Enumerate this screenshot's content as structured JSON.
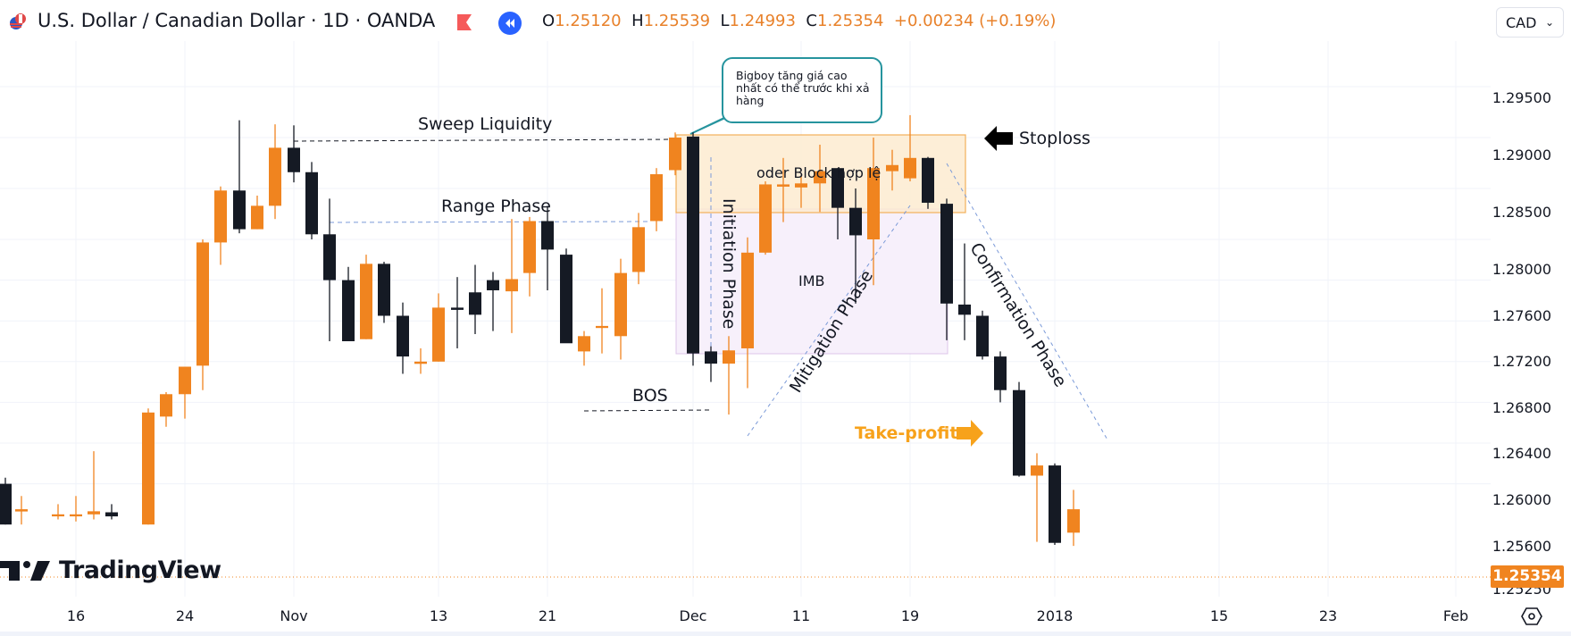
{
  "header": {
    "symbol_title": "U.S. Dollar / Canadian Dollar · 1D · OANDA",
    "ohlc": {
      "o_label": "O",
      "o_value": "1.25120",
      "h_label": "H",
      "h_value": "1.25539",
      "l_label": "L",
      "l_value": "1.24993",
      "c_label": "C",
      "c_value": "1.25354",
      "change": "+0.00234 (+0.19%)"
    },
    "currency_button": "CAD",
    "icons": [
      "usd-cad-flag-icon",
      "red-flag-icon",
      "rewind-icon",
      "chevron-down-icon"
    ]
  },
  "price_axis": {
    "labels": [
      "1.29500",
      "1.29000",
      "1.28500",
      "1.28000",
      "1.27600",
      "1.27200",
      "1.26800",
      "1.26400",
      "1.26000",
      "1.25600",
      "1.25250"
    ],
    "current_price": "1.25354"
  },
  "time_axis": {
    "labels": [
      "16",
      "24",
      "Nov",
      "13",
      "21",
      "Dec",
      "11",
      "19",
      "2018",
      "15",
      "23",
      "Feb"
    ]
  },
  "annotations": {
    "sweep_liquidity": "Sweep Liquidity",
    "range_phase": "Range Phase",
    "bos": "BOS",
    "initiation_phase": "Initiation Phase",
    "order_block": "oder Block hợp lệ",
    "imb": "IMB",
    "mitigation_phase": "Mitigation Phase",
    "confirmation_phase": "Confirmation Phase",
    "stoploss": "Stoploss",
    "take_profit": "Take-profit",
    "callout": "Bigboy tăng giá cao nhất có thể trước khi xả hàng"
  },
  "colors": {
    "up": "#f0841f",
    "down": "#151a24",
    "order_block_fill": "#fdebd0",
    "order_block_border": "#f2b05a",
    "imb_fill": "#f7f0fb",
    "imb_border": "#dcc4e8",
    "callout_border": "#26949e",
    "take_profit": "#f7a21b",
    "dash_blue": "#7b9ad8",
    "accent_blue": "#2962ff"
  },
  "branding": {
    "logo_text": "TradingView"
  },
  "chart_data": {
    "type": "candlestick",
    "title": "U.S. Dollar / Canadian Dollar · 1D · OANDA",
    "xlabel": "",
    "ylabel": "CAD",
    "ylim": [
      1.2525,
      1.2985
    ],
    "x_ticks": [
      "16",
      "24",
      "Nov",
      "13",
      "21",
      "Dec",
      "11",
      "19",
      "2018",
      "15",
      "23",
      "Feb"
    ],
    "y_ticks": [
      1.295,
      1.29,
      1.285,
      1.28,
      1.276,
      1.272,
      1.268,
      1.264,
      1.26,
      1.256
    ],
    "last": {
      "open": 1.2512,
      "high": 1.25539,
      "low": 1.24993,
      "close": 1.25354,
      "change": 0.00234,
      "change_pct": 0.19
    },
    "candles": [
      {
        "x": 6,
        "o": 1.256,
        "h": 1.2566,
        "l": 1.252,
        "c": 1.252
      },
      {
        "x": 24,
        "o": 1.2535,
        "h": 1.2548,
        "l": 1.252,
        "c": 1.2535
      },
      {
        "x": 65,
        "o": 1.2528,
        "h": 1.254,
        "l": 1.2525,
        "c": 1.253
      },
      {
        "x": 85,
        "o": 1.2528,
        "h": 1.2548,
        "l": 1.2523,
        "c": 1.253
      },
      {
        "x": 105,
        "o": 1.253,
        "h": 1.2592,
        "l": 1.2525,
        "c": 1.2533
      },
      {
        "x": 125,
        "o": 1.2532,
        "h": 1.254,
        "l": 1.2525,
        "c": 1.2528
      },
      {
        "x": 166,
        "o": 1.252,
        "h": 1.2634,
        "l": 1.252,
        "c": 1.263
      },
      {
        "x": 186,
        "o": 1.2626,
        "h": 1.265,
        "l": 1.2616,
        "c": 1.2648
      },
      {
        "x": 207,
        "o": 1.2648,
        "h": 1.2672,
        "l": 1.2624,
        "c": 1.2675
      },
      {
        "x": 227,
        "o": 1.2676,
        "h": 1.28,
        "l": 1.2652,
        "c": 1.2797
      },
      {
        "x": 247,
        "o": 1.2797,
        "h": 1.2852,
        "l": 1.2775,
        "c": 1.2848
      },
      {
        "x": 268,
        "o": 1.2848,
        "h": 1.2917,
        "l": 1.2806,
        "c": 1.281
      },
      {
        "x": 288,
        "o": 1.281,
        "h": 1.2843,
        "l": 1.281,
        "c": 1.2833
      },
      {
        "x": 308,
        "o": 1.2833,
        "h": 1.2913,
        "l": 1.282,
        "c": 1.289
      },
      {
        "x": 329,
        "o": 1.289,
        "h": 1.2912,
        "l": 1.2856,
        "c": 1.2866
      },
      {
        "x": 349,
        "o": 1.2866,
        "h": 1.2876,
        "l": 1.28,
        "c": 1.2805
      },
      {
        "x": 369,
        "o": 1.2805,
        "h": 1.284,
        "l": 1.27,
        "c": 1.276
      },
      {
        "x": 390,
        "o": 1.276,
        "h": 1.2773,
        "l": 1.2703,
        "c": 1.27
      },
      {
        "x": 410,
        "o": 1.2702,
        "h": 1.2785,
        "l": 1.2702,
        "c": 1.2776
      },
      {
        "x": 430,
        "o": 1.2776,
        "h": 1.2778,
        "l": 1.2718,
        "c": 1.2725
      },
      {
        "x": 451,
        "o": 1.2725,
        "h": 1.2738,
        "l": 1.2668,
        "c": 1.2685
      },
      {
        "x": 471,
        "o": 1.268,
        "h": 1.2693,
        "l": 1.2668,
        "c": 1.268
      },
      {
        "x": 491,
        "o": 1.268,
        "h": 1.2747,
        "l": 1.268,
        "c": 1.2733
      },
      {
        "x": 512,
        "o": 1.2733,
        "h": 1.2763,
        "l": 1.2693,
        "c": 1.2732
      },
      {
        "x": 532,
        "o": 1.2748,
        "h": 1.2775,
        "l": 1.2707,
        "c": 1.2726
      },
      {
        "x": 552,
        "o": 1.276,
        "h": 1.2768,
        "l": 1.271,
        "c": 1.275
      },
      {
        "x": 573,
        "o": 1.2749,
        "h": 1.282,
        "l": 1.2708,
        "c": 1.2761
      },
      {
        "x": 593,
        "o": 1.2767,
        "h": 1.2822,
        "l": 1.2744,
        "c": 1.2818
      },
      {
        "x": 613,
        "o": 1.2818,
        "h": 1.2833,
        "l": 1.275,
        "c": 1.279
      },
      {
        "x": 634,
        "o": 1.2785,
        "h": 1.2791,
        "l": 1.271,
        "c": 1.2698
      },
      {
        "x": 654,
        "o": 1.269,
        "h": 1.271,
        "l": 1.2676,
        "c": 1.2705
      },
      {
        "x": 674,
        "o": 1.2713,
        "h": 1.2752,
        "l": 1.2688,
        "c": 1.2715
      },
      {
        "x": 695,
        "o": 1.2705,
        "h": 1.2781,
        "l": 1.2682,
        "c": 1.2767
      },
      {
        "x": 715,
        "o": 1.2768,
        "h": 1.2826,
        "l": 1.2756,
        "c": 1.2812
      },
      {
        "x": 735,
        "o": 1.2818,
        "h": 1.287,
        "l": 1.2808,
        "c": 1.2864
      },
      {
        "x": 756,
        "o": 1.2868,
        "h": 1.2905,
        "l": 1.2863,
        "c": 1.29
      },
      {
        "x": 776,
        "o": 1.2901,
        "h": 1.2905,
        "l": 1.2676,
        "c": 1.2688
      },
      {
        "x": 796,
        "o": 1.269,
        "h": 1.2695,
        "l": 1.266,
        "c": 1.2678
      },
      {
        "x": 816,
        "o": 1.2678,
        "h": 1.2705,
        "l": 1.2628,
        "c": 1.2691
      },
      {
        "x": 837,
        "o": 1.2693,
        "h": 1.2802,
        "l": 1.2654,
        "c": 1.2787
      },
      {
        "x": 857,
        "o": 1.2787,
        "h": 1.2857,
        "l": 1.2785,
        "c": 1.2854
      },
      {
        "x": 877,
        "o": 1.2853,
        "h": 1.288,
        "l": 1.2817,
        "c": 1.2854
      },
      {
        "x": 897,
        "o": 1.2851,
        "h": 1.2862,
        "l": 1.2831,
        "c": 1.2855
      },
      {
        "x": 918,
        "o": 1.2855,
        "h": 1.2893,
        "l": 1.2827,
        "c": 1.2867
      },
      {
        "x": 938,
        "o": 1.287,
        "h": 1.287,
        "l": 1.28,
        "c": 1.2831
      },
      {
        "x": 958,
        "o": 1.2831,
        "h": 1.285,
        "l": 1.2737,
        "c": 1.2804
      },
      {
        "x": 978,
        "o": 1.28,
        "h": 1.29,
        "l": 1.2755,
        "c": 1.287
      },
      {
        "x": 999,
        "o": 1.2867,
        "h": 1.2888,
        "l": 1.2848,
        "c": 1.2873
      },
      {
        "x": 1019,
        "o": 1.286,
        "h": 1.2922,
        "l": 1.2857,
        "c": 1.288
      },
      {
        "x": 1039,
        "o": 1.288,
        "h": 1.2881,
        "l": 1.283,
        "c": 1.2836
      },
      {
        "x": 1060,
        "o": 1.2835,
        "h": 1.284,
        "l": 1.2701,
        "c": 1.2737
      },
      {
        "x": 1080,
        "o": 1.2736,
        "h": 1.2796,
        "l": 1.2701,
        "c": 1.2726
      },
      {
        "x": 1100,
        "o": 1.2725,
        "h": 1.273,
        "l": 1.2682,
        "c": 1.2685
      },
      {
        "x": 1120,
        "o": 1.2685,
        "h": 1.269,
        "l": 1.264,
        "c": 1.2652
      },
      {
        "x": 1141,
        "o": 1.2652,
        "h": 1.266,
        "l": 1.2567,
        "c": 1.2568
      },
      {
        "x": 1161,
        "o": 1.2568,
        "h": 1.259,
        "l": 1.2503,
        "c": 1.2578
      },
      {
        "x": 1181,
        "o": 1.2578,
        "h": 1.258,
        "l": 1.25,
        "c": 1.2502
      },
      {
        "x": 1202,
        "o": 1.2512,
        "h": 1.2554,
        "l": 1.2499,
        "c": 1.2535
      }
    ]
  }
}
